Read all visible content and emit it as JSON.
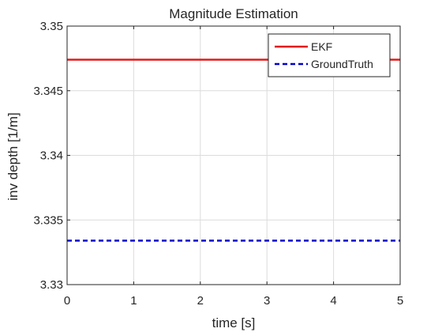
{
  "chart_data": {
    "type": "line",
    "title": "Magnitude Estimation",
    "xlabel": "time [s]",
    "ylabel": "inv depth [1/m]",
    "xlim": [
      0,
      5
    ],
    "ylim": [
      3.33,
      3.35
    ],
    "xticks": [
      0,
      1,
      2,
      3,
      4,
      5
    ],
    "xtick_labels": [
      "0",
      "1",
      "2",
      "3",
      "4",
      "5"
    ],
    "yticks": [
      3.33,
      3.335,
      3.34,
      3.345,
      3.35
    ],
    "ytick_labels": [
      "3.33",
      "3.335",
      "3.34",
      "3.345",
      "3.35"
    ],
    "grid": true,
    "legend_position": "top-right",
    "series": [
      {
        "name": "EKF",
        "x": [
          0,
          5
        ],
        "y": [
          3.3474,
          3.3474
        ],
        "color": "#e41a1c",
        "style": "solid"
      },
      {
        "name": "GroundTruth",
        "x": [
          0,
          5
        ],
        "y": [
          3.3334,
          3.3334
        ],
        "color": "#0000cc",
        "style": "dashed"
      }
    ]
  }
}
